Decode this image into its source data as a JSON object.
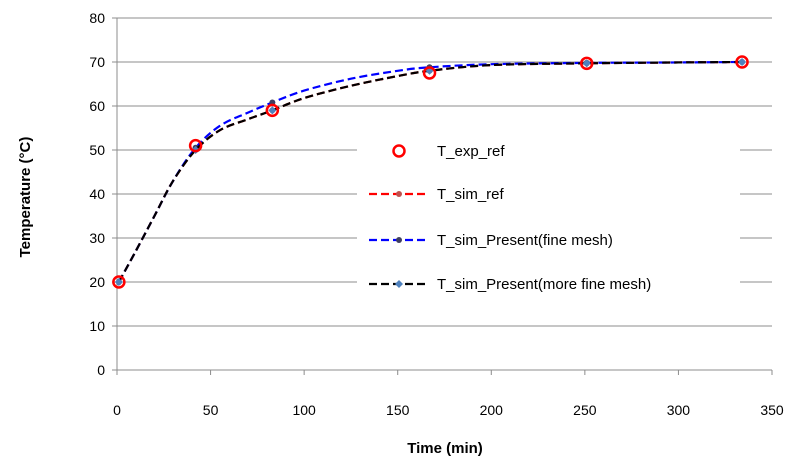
{
  "chart_data": {
    "type": "line",
    "title": "",
    "xlabel": "Time (min)",
    "ylabel": "Temperature (°C)",
    "xlim": [
      0,
      350
    ],
    "ylim": [
      0,
      80
    ],
    "xticks": [
      0,
      50,
      100,
      150,
      200,
      250,
      300,
      350
    ],
    "yticks": [
      0,
      10,
      20,
      30,
      40,
      50,
      60,
      70,
      80
    ],
    "grid": "horizontal",
    "legend_position": "center-right",
    "series": [
      {
        "name": "T_exp_ref",
        "style": "markers",
        "color": "#ff0000",
        "x": [
          1,
          42,
          83,
          167,
          251,
          334
        ],
        "y": [
          20,
          51,
          59,
          67.5,
          69.7,
          70
        ]
      },
      {
        "name": "T_sim_ref",
        "style": "dashed-line",
        "color": "#ff0000",
        "x": [
          1,
          10,
          20,
          30,
          42,
          55,
          70,
          83,
          100,
          125,
          150,
          167,
          200,
          251,
          300,
          334
        ],
        "y": [
          20,
          27,
          35,
          43,
          50,
          54.5,
          57,
          59,
          61.8,
          64.6,
          66.8,
          68,
          69.3,
          69.7,
          69.9,
          70
        ]
      },
      {
        "name": "T_sim_Present(fine mesh)",
        "style": "dashed-line",
        "color": "#0000ff",
        "x": [
          1,
          10,
          20,
          30,
          42,
          55,
          70,
          83,
          100,
          125,
          150,
          167,
          200,
          251,
          300,
          334
        ],
        "y": [
          20,
          27,
          35,
          43,
          50.5,
          55.5,
          58.5,
          60.8,
          63.5,
          66.2,
          68,
          68.8,
          69.5,
          69.8,
          69.9,
          70
        ]
      },
      {
        "name": "T_sim_Present(more fine mesh)",
        "style": "dashed-line",
        "color": "#000000",
        "x": [
          1,
          10,
          20,
          30,
          42,
          55,
          70,
          83,
          100,
          125,
          150,
          167,
          200,
          251,
          300,
          334
        ],
        "y": [
          20,
          27,
          35,
          43,
          50,
          54.5,
          57,
          59,
          61.8,
          64.6,
          66.8,
          68,
          69.3,
          69.7,
          69.9,
          70
        ]
      }
    ]
  }
}
